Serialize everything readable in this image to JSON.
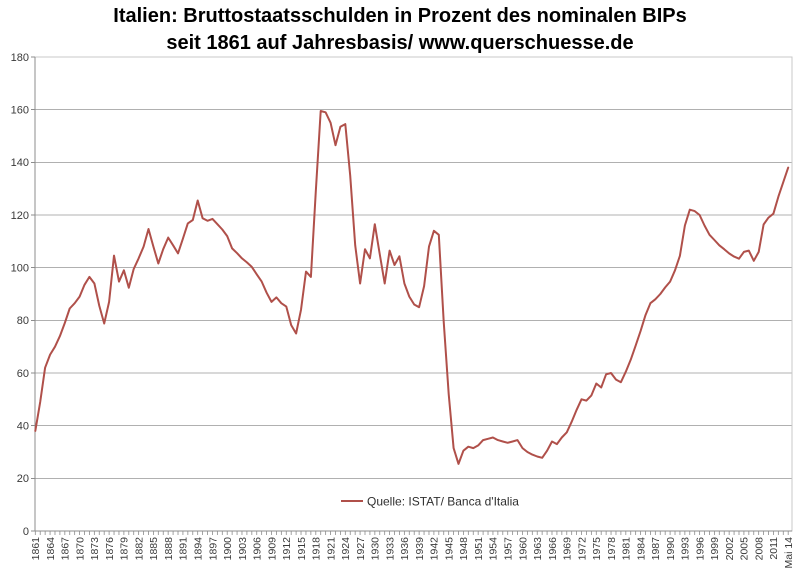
{
  "header": {
    "title_line1": "Italien: Bruttostaatsschulden in Prozent des nominalen BIPs",
    "title_line2": "seit 1861 auf Jahresbasis/ www.querschuesse.de"
  },
  "chart_data": {
    "type": "line",
    "title": "Italien: Bruttostaatsschulden in Prozent des nominalen BIPs seit 1861 auf Jahresbasis/ www.querschuesse.de",
    "xlabel": "",
    "ylabel": "",
    "ylim": [
      0,
      180
    ],
    "yticks": [
      0,
      20,
      40,
      60,
      80,
      100,
      120,
      140,
      160,
      180
    ],
    "grid": "horizontal",
    "legend_position": "inside-bottom-center",
    "x_note": "annual categories 1861-2013 plus final point Mai 2014",
    "xtick_every": 3,
    "xtick_labels": [
      "1861",
      "1864",
      "1867",
      "1870",
      "1873",
      "1876",
      "1879",
      "1882",
      "1885",
      "1888",
      "1891",
      "1894",
      "1897",
      "1900",
      "1903",
      "1906",
      "1909",
      "1912",
      "1915",
      "1918",
      "1921",
      "1924",
      "1927",
      "1930",
      "1933",
      "1936",
      "1939",
      "1942",
      "1945",
      "1948",
      "1951",
      "1954",
      "1957",
      "1960",
      "1963",
      "1966",
      "1969",
      "1972",
      "1975",
      "1978",
      "1981",
      "1984",
      "1987",
      "1990",
      "1993",
      "1996",
      "1999",
      "2002",
      "2005",
      "2008",
      "2011",
      "Mai 14"
    ],
    "colors": {
      "line": "#b0504a",
      "grid": "#b0b0b0",
      "axis": "#8c8c8c",
      "border": "#c9c9c9",
      "tick_text": "#3a3a3a",
      "title_text": "#000000",
      "background": "#ffffff"
    },
    "series": [
      {
        "name": "Quelle: ISTAT/ Banca d'Italia",
        "color": "#b0504a",
        "values": [
          38,
          49,
          62,
          67,
          70,
          74,
          79,
          84.5,
          86.5,
          89,
          93.5,
          96.5,
          94,
          85.5,
          78.8,
          87,
          104.6,
          94.7,
          99,
          92.4,
          99.5,
          103.5,
          108,
          114.7,
          108,
          101.6,
          107,
          111.4,
          108.5,
          105.4,
          111,
          116.8,
          118.1,
          125.5,
          118.8,
          117.8,
          118.5,
          116.5,
          114.5,
          112,
          107.3,
          105.5,
          103.5,
          102,
          100.3,
          97.5,
          94.7,
          90.5,
          87,
          88.7,
          86.5,
          85.2,
          78.2,
          75,
          84,
          98.5,
          96.5,
          129,
          159.5,
          159,
          155,
          146.5,
          153.5,
          154.5,
          135,
          108.5,
          94,
          107,
          103.5,
          116.5,
          105,
          94,
          106.5,
          101,
          104.3,
          94,
          89,
          86,
          85,
          93,
          108,
          114,
          112.5,
          79.5,
          52,
          31.5,
          25.5,
          30.5,
          32,
          31.5,
          32.5,
          34.5,
          35,
          35.5,
          34.5,
          34,
          33.5,
          34,
          34.5,
          31.5,
          30,
          29,
          28.3,
          27.8,
          30.5,
          34,
          33,
          35.5,
          37.5,
          41.5,
          46,
          50,
          49.5,
          51.5,
          56,
          54.5,
          59.5,
          60,
          57.5,
          56.5,
          60.5,
          65,
          70.5,
          76,
          82,
          86.5,
          88,
          90,
          92.5,
          94.7,
          99,
          104.5,
          116,
          122,
          121.5,
          120,
          116,
          112.5,
          110.5,
          108.5,
          107,
          105.4,
          104.2,
          103.4,
          106,
          106.5,
          102.6,
          106,
          116.4,
          119,
          120.5,
          127,
          132.5,
          138
        ]
      }
    ]
  }
}
